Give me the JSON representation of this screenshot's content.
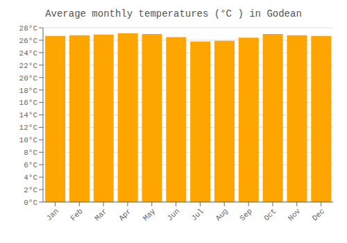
{
  "chart_data": {
    "type": "bar",
    "title": "Average monthly temperatures (°C ) in Godean",
    "categories": [
      "Jan",
      "Feb",
      "Mar",
      "Apr",
      "May",
      "Jun",
      "Jul",
      "Aug",
      "Sep",
      "Oct",
      "Nov",
      "Dec"
    ],
    "values": [
      26.7,
      26.8,
      26.9,
      27.1,
      27.0,
      26.5,
      25.8,
      25.9,
      26.4,
      27.0,
      26.8,
      26.7
    ],
    "color": "#FFA500",
    "ylim": [
      0,
      28
    ],
    "yticks": [
      {
        "value": 0,
        "label": "0°C"
      },
      {
        "value": 2,
        "label": "2°C"
      },
      {
        "value": 4,
        "label": "4°C"
      },
      {
        "value": 6,
        "label": "6°C"
      },
      {
        "value": 8,
        "label": "8°C"
      },
      {
        "value": 10,
        "label": "10°C"
      },
      {
        "value": 12,
        "label": "12°C"
      },
      {
        "value": 14,
        "label": "14°C"
      },
      {
        "value": 16,
        "label": "16°C"
      },
      {
        "value": 18,
        "label": "18°C"
      },
      {
        "value": 20,
        "label": "20°C"
      },
      {
        "value": 22,
        "label": "22°C"
      },
      {
        "value": 24,
        "label": "24°C"
      },
      {
        "value": 26,
        "label": "26°C"
      },
      {
        "value": 28,
        "label": "28°C"
      }
    ],
    "grid": true
  }
}
